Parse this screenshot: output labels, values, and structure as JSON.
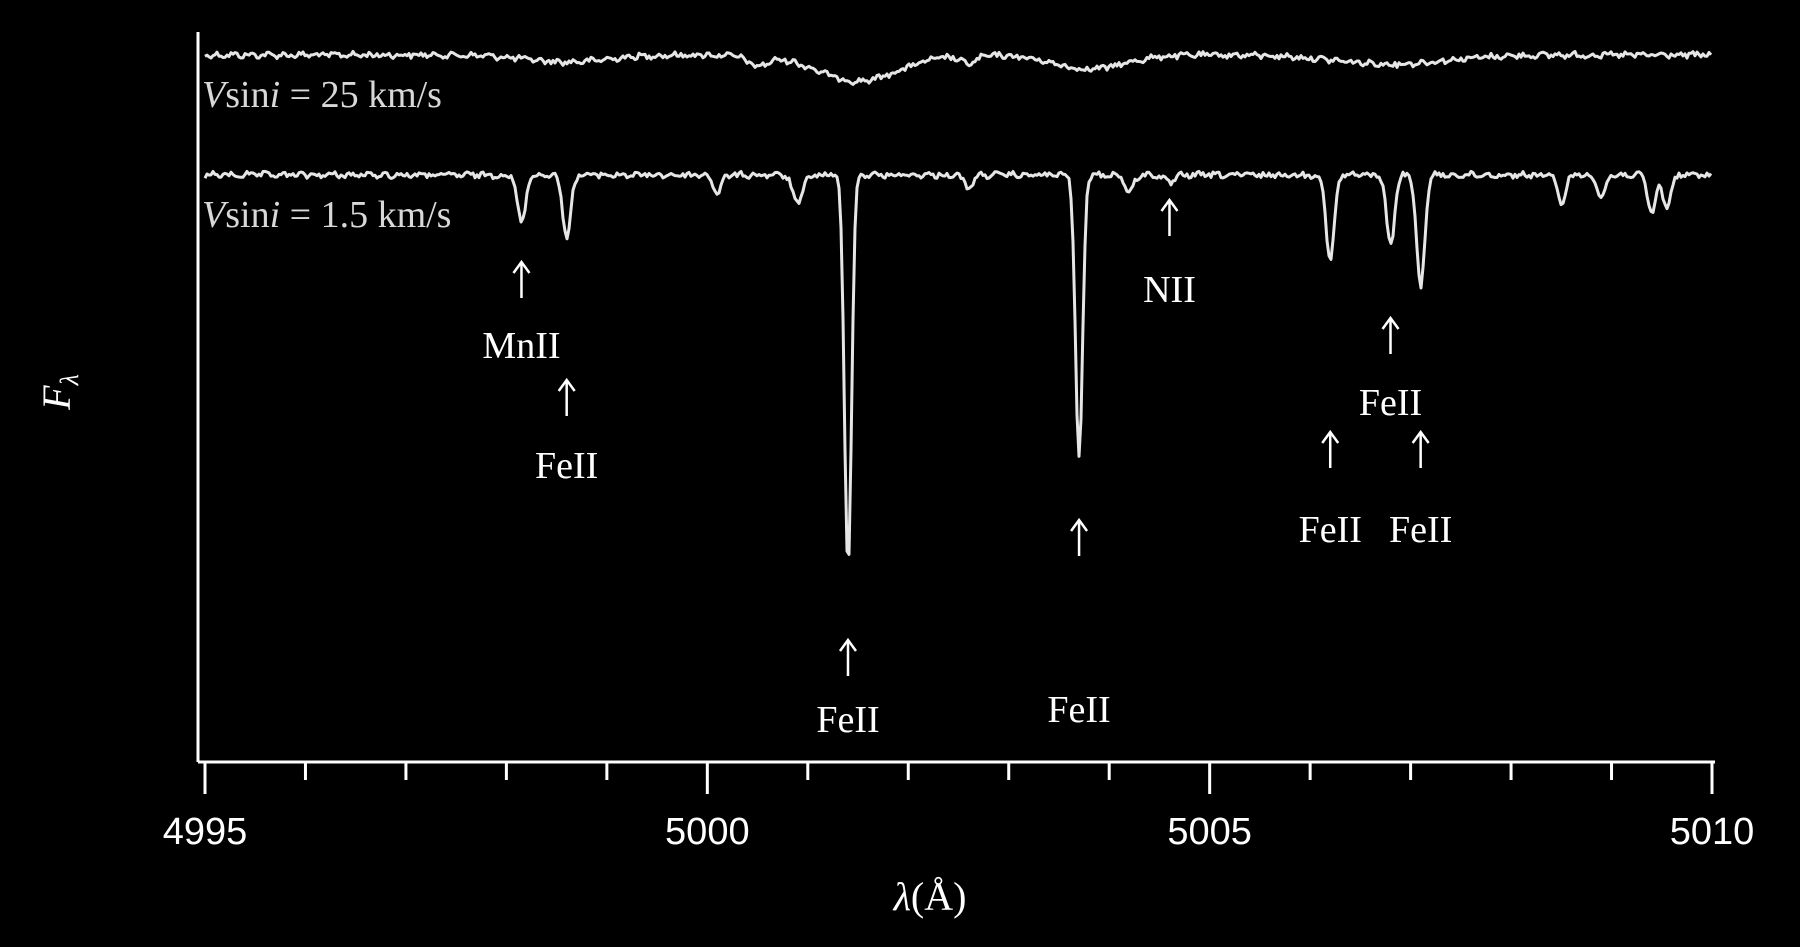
{
  "chart_data": {
    "type": "line",
    "title": "",
    "xlabel": {
      "symbol": "λ",
      "unit": "(Å)"
    },
    "ylabel": {
      "main": "F",
      "sub": "λ"
    },
    "xlim": [
      4995,
      5010
    ],
    "x_major_ticks": [
      4995,
      5000,
      5005,
      5010
    ],
    "x_minor_step": 1,
    "grid": false,
    "colors": {
      "background": "#000000",
      "foreground": "#ffffff",
      "trace": "#e6e6e6"
    },
    "series": [
      {
        "name": "Vsini = 25 km/s",
        "label": {
          "pre": "V",
          "mid": "sin",
          "ital": "i",
          "post": " = 25 km/s"
        },
        "continuum": 0,
        "lines": [
          {
            "center": 5001.5,
            "depth": 26,
            "width": 0.4
          },
          {
            "center": 5003.8,
            "depth": 14,
            "width": 0.35
          },
          {
            "center": 5006.8,
            "depth": 9,
            "width": 0.55
          },
          {
            "center": 4998.6,
            "depth": 7,
            "width": 0.4
          },
          {
            "center": 5000.5,
            "depth": 10,
            "width": 0.1
          },
          {
            "center": 5002.6,
            "depth": 8,
            "width": 0.08
          }
        ]
      },
      {
        "name": "Vsini = 1.5 km/s",
        "label": {
          "pre": "V",
          "mid": "sin",
          "ital": "i",
          "post": " = 1.5 km/s"
        },
        "continuum": 0,
        "lines": [
          {
            "center": 4998.15,
            "depth": 48,
            "width": 0.04
          },
          {
            "center": 4998.6,
            "depth": 62,
            "width": 0.04
          },
          {
            "center": 5000.1,
            "depth": 18,
            "width": 0.04
          },
          {
            "center": 5000.9,
            "depth": 28,
            "width": 0.05
          },
          {
            "center": 5001.4,
            "depth": 392,
            "width": 0.035
          },
          {
            "center": 5002.6,
            "depth": 14,
            "width": 0.04
          },
          {
            "center": 5003.7,
            "depth": 285,
            "width": 0.035
          },
          {
            "center": 5004.2,
            "depth": 18,
            "width": 0.04
          },
          {
            "center": 5004.6,
            "depth": 8,
            "width": 0.05
          },
          {
            "center": 5006.2,
            "depth": 86,
            "width": 0.04
          },
          {
            "center": 5006.8,
            "depth": 70,
            "width": 0.04
          },
          {
            "center": 5007.1,
            "depth": 112,
            "width": 0.04
          },
          {
            "center": 5008.5,
            "depth": 28,
            "width": 0.04
          },
          {
            "center": 5008.9,
            "depth": 22,
            "width": 0.04
          },
          {
            "center": 5009.4,
            "depth": 38,
            "width": 0.04
          },
          {
            "center": 5009.55,
            "depth": 32,
            "width": 0.04
          }
        ]
      }
    ],
    "annotations": [
      {
        "text": "MnII",
        "x": 4998.15,
        "arrow_level": 1,
        "label_level": 1
      },
      {
        "text": "FeII",
        "x": 4998.6,
        "arrow_level": 2,
        "label_level": 2
      },
      {
        "text": "FeII",
        "x": 5001.4,
        "arrow_level": 5,
        "label_level": 5
      },
      {
        "text": "FeII",
        "x": 5003.7,
        "arrow_level": 4,
        "label_level": 4
      },
      {
        "text": "NII",
        "x": 5004.6,
        "arrow_level": 0,
        "label_level": 0
      },
      {
        "text": "FeII",
        "x": 5006.8,
        "arrow_level": 6,
        "label_level": 6
      },
      {
        "text": "FeII",
        "x": 5006.2,
        "arrow_level": 7,
        "label_level": 7
      },
      {
        "text": "FeII",
        "x": 5007.1,
        "arrow_level": 7,
        "label_level": 7
      }
    ]
  }
}
